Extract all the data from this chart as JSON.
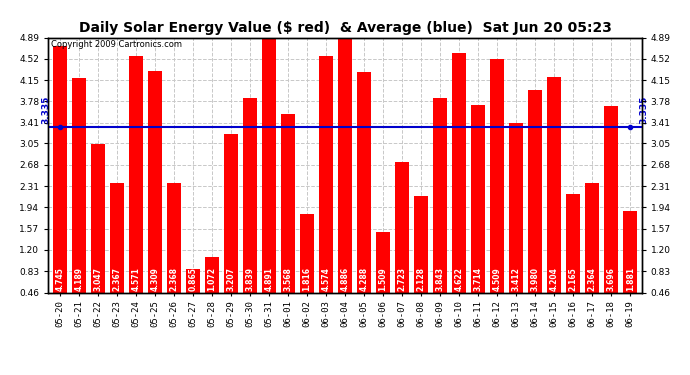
{
  "title": "Daily Solar Energy Value ($ red)  & Average (blue)  Sat Jun 20 05:23",
  "copyright": "Copyright 2009 Cartronics.com",
  "average": 3.335,
  "bar_color": "#FF0000",
  "avg_line_color": "#0000CC",
  "background_color": "#FFFFFF",
  "plot_bg_color": "#FFFFFF",
  "ymin": 0.46,
  "ymax": 4.89,
  "yticks": [
    0.46,
    0.83,
    1.2,
    1.57,
    1.94,
    2.31,
    2.68,
    3.05,
    3.41,
    3.78,
    4.15,
    4.52,
    4.89
  ],
  "categories": [
    "05-20",
    "05-21",
    "05-22",
    "05-23",
    "05-24",
    "05-25",
    "05-26",
    "05-27",
    "05-28",
    "05-29",
    "05-30",
    "05-31",
    "06-01",
    "06-02",
    "06-03",
    "06-04",
    "06-05",
    "06-06",
    "06-07",
    "06-08",
    "06-09",
    "06-10",
    "06-11",
    "06-12",
    "06-13",
    "06-14",
    "06-15",
    "06-16",
    "06-17",
    "06-18",
    "06-19"
  ],
  "values": [
    4.745,
    4.189,
    3.047,
    2.367,
    4.571,
    4.309,
    2.368,
    0.865,
    1.072,
    3.207,
    3.839,
    4.891,
    3.568,
    1.816,
    4.574,
    4.886,
    4.288,
    1.509,
    2.723,
    2.128,
    3.843,
    4.622,
    3.714,
    4.509,
    3.412,
    3.98,
    4.204,
    2.165,
    2.364,
    3.696,
    1.881
  ],
  "title_fontsize": 10,
  "tick_fontsize": 6.5,
  "bar_label_fontsize": 5.5,
  "avg_label": "3.335",
  "grid_color": "#C8C8C8",
  "border_color": "#000000"
}
